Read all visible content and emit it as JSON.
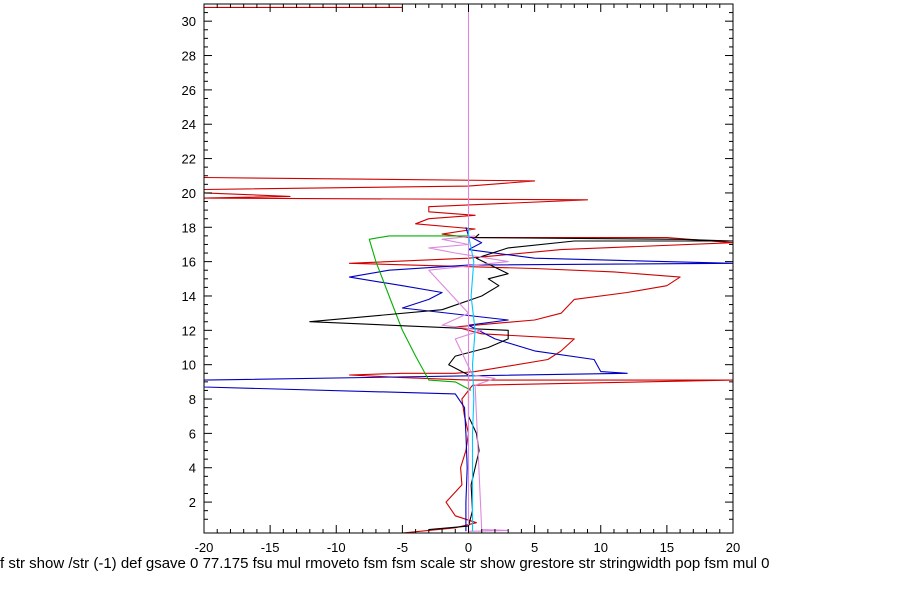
{
  "chart_data": {
    "type": "line",
    "title": "",
    "xlabel": "f str show /str (-1) def gsave 0 77.175 fsu mul rmoveto fsm fsm scale str show grestore str stringwidth pop fsm mul 0",
    "ylabel": "",
    "xlim": [
      -20,
      20
    ],
    "ylim": [
      0.2,
      31
    ],
    "xticks": [
      -20,
      -15,
      -10,
      -5,
      0,
      5,
      10,
      15,
      20
    ],
    "yticks": [
      2,
      4,
      6,
      8,
      10,
      12,
      14,
      16,
      18,
      20,
      22,
      24,
      26,
      28,
      30
    ],
    "grid": false,
    "legend": "none",
    "series": [
      {
        "color": "#d00000",
        "points": [
          [
            -5,
            0.2
          ],
          [
            -1,
            0.5
          ],
          [
            0.6,
            0.8
          ],
          [
            -1,
            1.2
          ],
          [
            -1.7,
            2
          ],
          [
            -0.5,
            3
          ],
          [
            -0.6,
            4
          ],
          [
            -0.2,
            5
          ],
          [
            0,
            6
          ],
          [
            -0.3,
            7
          ],
          [
            -0.5,
            8
          ],
          [
            0.3,
            8.8
          ],
          [
            20,
            9.1
          ],
          [
            0,
            9.1
          ],
          [
            -5,
            9.25
          ],
          [
            -9,
            9.4
          ],
          [
            -5,
            9.5
          ],
          [
            -1,
            9.5
          ],
          [
            0.5,
            9.6
          ],
          [
            6,
            10.3
          ],
          [
            7,
            10.8
          ],
          [
            8,
            11.5
          ],
          [
            1,
            11.8
          ],
          [
            -1,
            12.2
          ],
          [
            5,
            12.6
          ],
          [
            7,
            13
          ],
          [
            8,
            13.8
          ],
          [
            12,
            14.2
          ],
          [
            15,
            14.6
          ],
          [
            16,
            15.1
          ],
          [
            11,
            15.4
          ],
          [
            5,
            15.6
          ],
          [
            -9,
            15.9
          ],
          [
            0,
            16.2
          ],
          [
            7,
            16.7
          ],
          [
            20,
            17.1
          ],
          [
            15,
            17.4
          ],
          [
            0,
            17.4
          ],
          [
            -2,
            17.6
          ],
          [
            0.5,
            17.9
          ],
          [
            -4,
            18.2
          ],
          [
            -3,
            18.5
          ],
          [
            0.5,
            18.7
          ],
          [
            -3,
            18.9
          ],
          [
            -3,
            19.2
          ],
          [
            9,
            19.6
          ],
          [
            -20,
            19.7
          ],
          [
            -13.5,
            19.8
          ],
          [
            -20,
            20
          ],
          [
            -20,
            20.2
          ],
          [
            0,
            20.4
          ],
          [
            5,
            20.7
          ],
          [
            -20,
            20.9
          ],
          [
            -20,
            20.9
          ]
        ]
      },
      {
        "color": "#d00000",
        "points": [
          [
            -20,
            30.8
          ],
          [
            -5,
            30.8
          ]
        ]
      },
      {
        "color": "#0000c0",
        "points": [
          [
            -0.2,
            0.3
          ],
          [
            -0.2,
            2
          ],
          [
            -0.1,
            4
          ],
          [
            -0.2,
            6
          ],
          [
            -0.3,
            7.5
          ],
          [
            -1,
            8.3
          ],
          [
            -20,
            8.7
          ],
          [
            -20,
            9.1
          ],
          [
            12,
            9.5
          ],
          [
            10,
            9.6
          ],
          [
            9.5,
            10.3
          ],
          [
            5,
            10.8
          ],
          [
            2,
            11.5
          ],
          [
            0,
            12.3
          ],
          [
            3,
            12.6
          ],
          [
            -5,
            13.3
          ],
          [
            -3,
            13.8
          ],
          [
            -2,
            14.2
          ],
          [
            -5,
            14.6
          ],
          [
            -9,
            15.1
          ],
          [
            -6,
            15.5
          ],
          [
            0,
            15.8
          ],
          [
            20,
            15.9
          ],
          [
            5,
            16.2
          ],
          [
            0,
            16.7
          ],
          [
            1,
            17.1
          ],
          [
            0,
            17.5
          ],
          [
            -0.2,
            18
          ]
        ]
      },
      {
        "color": "#00b000",
        "points": [
          [
            0.2,
            8.5
          ],
          [
            -1,
            9
          ],
          [
            -3,
            9.1
          ],
          [
            -4,
            10.5
          ],
          [
            -5,
            12
          ],
          [
            -6,
            14
          ],
          [
            -7,
            16
          ],
          [
            -7.5,
            17.3
          ],
          [
            -6,
            17.5
          ],
          [
            0,
            17.5
          ]
        ]
      },
      {
        "color": "#000000",
        "points": [
          [
            -3,
            0.4
          ],
          [
            0,
            0.6
          ],
          [
            0.3,
            1.5
          ],
          [
            0.2,
            3
          ],
          [
            0.5,
            4
          ],
          [
            0.8,
            5
          ],
          [
            0.6,
            6
          ],
          [
            0,
            7
          ],
          [
            0,
            8.3
          ],
          [
            0,
            9.4
          ],
          [
            -1.5,
            10
          ],
          [
            -1,
            10.5
          ],
          [
            1.5,
            11
          ],
          [
            3,
            11.5
          ],
          [
            3,
            12
          ],
          [
            -12,
            12.5
          ],
          [
            -2,
            13.2
          ],
          [
            1,
            14
          ],
          [
            2.3,
            14.6
          ],
          [
            1.5,
            15
          ],
          [
            3,
            15.3
          ],
          [
            0.6,
            16.2
          ],
          [
            3,
            16.8
          ],
          [
            8,
            17.2
          ],
          [
            20,
            17.2
          ],
          [
            16,
            17.3
          ],
          [
            0.5,
            17.4
          ],
          [
            0.8,
            17.6
          ]
        ]
      },
      {
        "color": "#dd88dd",
        "points": [
          [
            0,
            0.2
          ],
          [
            0,
            30.9
          ]
        ]
      },
      {
        "color": "#dd88dd",
        "points": [
          [
            0,
            0.3
          ],
          [
            3,
            0.35
          ],
          [
            1,
            0.4
          ],
          [
            0.5,
            8.8
          ],
          [
            2,
            9.2
          ],
          [
            0.3,
            9.4
          ],
          [
            -1,
            11.5
          ],
          [
            1,
            12
          ],
          [
            -2,
            12.3
          ],
          [
            0,
            13
          ],
          [
            -3,
            15.5
          ],
          [
            3,
            16
          ],
          [
            -1,
            16.5
          ],
          [
            -3,
            16.8
          ],
          [
            0,
            17
          ],
          [
            -2,
            17.3
          ],
          [
            0.5,
            17.5
          ]
        ]
      },
      {
        "color": "#00c8ff",
        "points": [
          [
            0.3,
            0.3
          ],
          [
            0.3,
            4
          ],
          [
            0.3,
            6
          ],
          [
            0.4,
            8
          ],
          [
            0.3,
            10
          ],
          [
            0.5,
            12
          ],
          [
            0.2,
            14
          ],
          [
            0.4,
            16
          ],
          [
            0,
            17.5
          ],
          [
            0,
            18
          ]
        ]
      }
    ]
  }
}
